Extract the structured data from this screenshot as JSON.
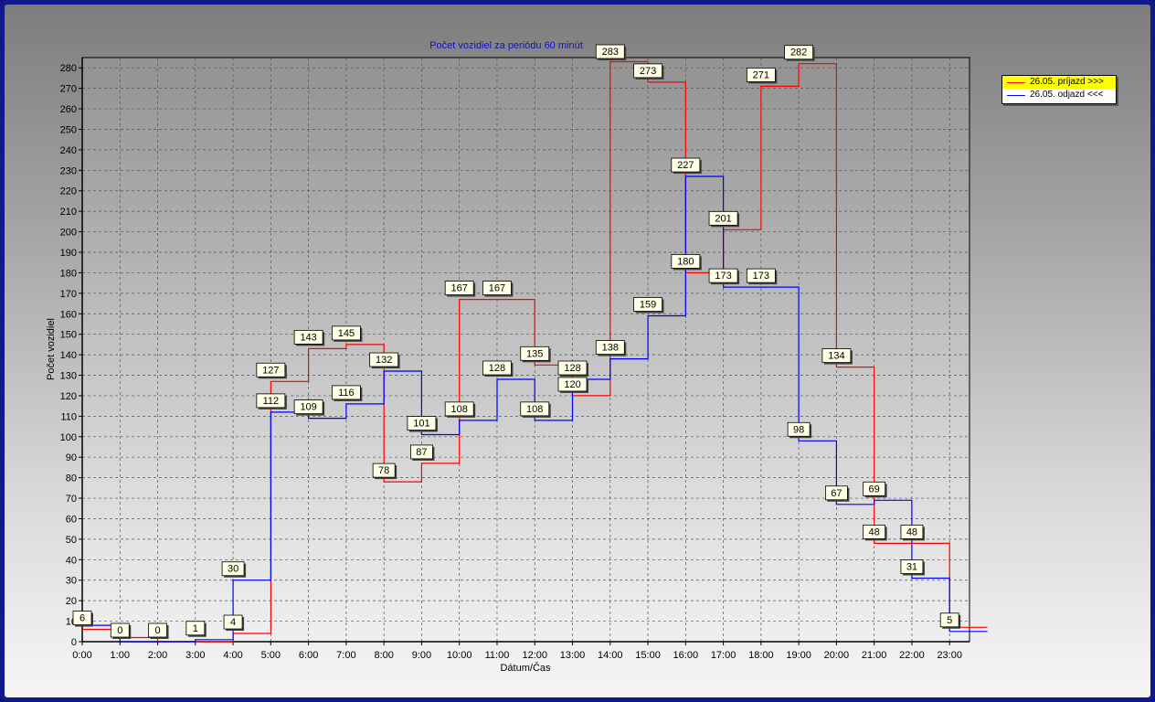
{
  "chart_data": {
    "type": "line",
    "step": true,
    "title": "Počet vozidiel za periódu 60 minút",
    "xlabel": "Dátum/Čas",
    "ylabel": "Počet vozidiel",
    "ylim": [
      0,
      285
    ],
    "yticks": [
      0,
      10,
      20,
      30,
      40,
      50,
      60,
      70,
      80,
      90,
      100,
      110,
      120,
      130,
      140,
      150,
      160,
      170,
      180,
      190,
      200,
      210,
      220,
      230,
      240,
      250,
      260,
      270,
      280
    ],
    "categories": [
      "0:00",
      "1:00",
      "2:00",
      "3:00",
      "4:00",
      "5:00",
      "6:00",
      "7:00",
      "8:00",
      "9:00",
      "10:00",
      "11:00",
      "12:00",
      "13:00",
      "14:00",
      "15:00",
      "16:00",
      "17:00",
      "18:00",
      "19:00",
      "20:00",
      "21:00",
      "22:00",
      "23:00"
    ],
    "grid": true,
    "legend_position": "top-right",
    "series": [
      {
        "name": "26.05.  príjazd >>>",
        "color": "#ff0000",
        "values": [
          6,
          2,
          0,
          0,
          4,
          127,
          143,
          145,
          78,
          87,
          167,
          167,
          135,
          120,
          283,
          273,
          180,
          201,
          271,
          282,
          134,
          48,
          48,
          7
        ]
      },
      {
        "name": "26.05.  odjazd <<<",
        "color": "#0000ff",
        "values": [
          8,
          0,
          0,
          1,
          30,
          112,
          109,
          116,
          132,
          101,
          108,
          128,
          108,
          128,
          138,
          159,
          227,
          173,
          173,
          98,
          67,
          69,
          31,
          5
        ]
      }
    ],
    "annotations": [
      {
        "x": "0:00",
        "value": 6
      },
      {
        "x": "1:00",
        "value": 0
      },
      {
        "x": "2:00",
        "value": 0
      },
      {
        "x": "3:00",
        "value": 1
      },
      {
        "x": "4:00",
        "value": 30
      },
      {
        "x": "4:00",
        "value": 4
      },
      {
        "x": "5:00",
        "value": 127
      },
      {
        "x": "5:00",
        "value": 112
      },
      {
        "x": "6:00",
        "value": 143
      },
      {
        "x": "6:00",
        "value": 109
      },
      {
        "x": "7:00",
        "value": 145
      },
      {
        "x": "7:00",
        "value": 116
      },
      {
        "x": "8:00",
        "value": 132
      },
      {
        "x": "8:00",
        "value": 78
      },
      {
        "x": "9:00",
        "value": 101
      },
      {
        "x": "9:00",
        "value": 87
      },
      {
        "x": "10:00",
        "value": 167
      },
      {
        "x": "10:00",
        "value": 108
      },
      {
        "x": "11:00",
        "value": 167
      },
      {
        "x": "11:00",
        "value": 128
      },
      {
        "x": "12:00",
        "value": 135
      },
      {
        "x": "12:00",
        "value": 108
      },
      {
        "x": "13:00",
        "value": 128
      },
      {
        "x": "13:00",
        "value": 120
      },
      {
        "x": "14:00",
        "value": 283
      },
      {
        "x": "14:00",
        "value": 138
      },
      {
        "x": "15:00",
        "value": 273
      },
      {
        "x": "15:00",
        "value": 159
      },
      {
        "x": "16:00",
        "value": 227
      },
      {
        "x": "16:00",
        "value": 180
      },
      {
        "x": "17:00",
        "value": 201
      },
      {
        "x": "17:00",
        "value": 173
      },
      {
        "x": "18:00",
        "value": 271
      },
      {
        "x": "18:00",
        "value": 173
      },
      {
        "x": "19:00",
        "value": 282
      },
      {
        "x": "19:00",
        "value": 98
      },
      {
        "x": "20:00",
        "value": 134
      },
      {
        "x": "20:00",
        "value": 67
      },
      {
        "x": "21:00",
        "value": 69
      },
      {
        "x": "21:00",
        "value": 48
      },
      {
        "x": "22:00",
        "value": 48
      },
      {
        "x": "22:00",
        "value": 31
      },
      {
        "x": "23:00",
        "value": 5
      }
    ]
  }
}
